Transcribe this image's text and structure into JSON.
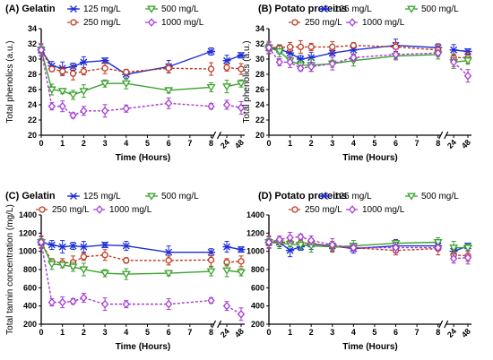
{
  "chart_data": [
    {
      "type": "line",
      "panel": "(A) Gelatin",
      "xlabel": "Time (Hours)",
      "ylabel": "Total phenolics (a.u.)",
      "ylim": [
        20,
        34
      ],
      "y_ticks": [
        "20",
        "22",
        "24",
        "26",
        "28",
        "30",
        "32",
        "34"
      ],
      "x_tick_labels": [
        "0",
        "1",
        "2",
        "3",
        "4",
        "5",
        "6",
        "7",
        "8",
        "24",
        "48"
      ],
      "series": [
        {
          "name": "125 mg/L",
          "color": "#1f2fd6",
          "dashed": false,
          "marker": "star",
          "x": [
            0,
            0.5,
            1,
            1.5,
            2,
            3,
            4,
            6,
            8,
            24,
            48
          ],
          "y": [
            31.2,
            29.1,
            28.8,
            29.0,
            29.6,
            29.8,
            28.0,
            29.0,
            31.0,
            29.8,
            30.5
          ]
        },
        {
          "name": "250 mg/L",
          "color": "#c0391e",
          "dashed": true,
          "marker": "circle",
          "x": [
            0,
            0.5,
            1,
            1.5,
            2,
            3,
            4,
            6,
            8,
            24,
            48
          ],
          "y": [
            31.2,
            28.7,
            28.4,
            28.1,
            28.4,
            28.8,
            28.3,
            28.8,
            28.7,
            28.9,
            28.7
          ]
        },
        {
          "name": "500 mg/L",
          "color": "#3aa22f",
          "dashed": false,
          "marker": "triangle-down",
          "x": [
            0,
            0.5,
            1,
            1.5,
            2,
            3,
            4,
            6,
            8,
            24,
            48
          ],
          "y": [
            31.2,
            26.0,
            25.8,
            25.3,
            25.8,
            26.8,
            26.8,
            25.9,
            26.3,
            26.4,
            26.8
          ]
        },
        {
          "name": "1000 mg/L",
          "color": "#a63cd6",
          "dashed": true,
          "marker": "diamond",
          "x": [
            0,
            0.5,
            1,
            1.5,
            2,
            3,
            4,
            6,
            8,
            24,
            48
          ],
          "y": [
            31.2,
            23.8,
            23.8,
            22.6,
            23.2,
            23.2,
            23.5,
            24.2,
            23.8,
            24.0,
            23.6
          ]
        }
      ]
    },
    {
      "type": "line",
      "panel": "(B) Potato proteins",
      "xlabel": "Time (Hours)",
      "ylabel": "Total phenolics (a.u.)",
      "ylim": [
        20,
        34
      ],
      "y_ticks": [
        "20",
        "22",
        "24",
        "26",
        "28",
        "30",
        "32",
        "34"
      ],
      "x_tick_labels": [
        "0",
        "1",
        "2",
        "3",
        "4",
        "5",
        "6",
        "7",
        "8",
        "24",
        "48"
      ],
      "series": [
        {
          "name": "125 mg/L",
          "color": "#1f2fd6",
          "dashed": false,
          "marker": "star",
          "x": [
            0,
            0.5,
            1,
            1.5,
            2,
            3,
            4,
            6,
            8,
            24,
            48
          ],
          "y": [
            31.5,
            31.3,
            30.8,
            30.0,
            30.2,
            30.8,
            31.2,
            31.8,
            31.5,
            31.2,
            31.0
          ]
        },
        {
          "name": "250 mg/L",
          "color": "#c0391e",
          "dashed": true,
          "marker": "circle",
          "x": [
            0,
            0.5,
            1,
            1.5,
            2,
            3,
            4,
            6,
            8,
            24,
            48
          ],
          "y": [
            31.5,
            31.5,
            31.6,
            31.6,
            31.6,
            31.6,
            31.8,
            31.6,
            31.2,
            30.2,
            30.2
          ]
        },
        {
          "name": "500 mg/L",
          "color": "#3aa22f",
          "dashed": false,
          "marker": "triangle-down",
          "x": [
            0,
            0.5,
            1,
            1.5,
            2,
            3,
            4,
            6,
            8,
            24,
            48
          ],
          "y": [
            31.5,
            31.0,
            29.8,
            29.2,
            29.2,
            29.4,
            29.8,
            30.4,
            30.6,
            29.6,
            29.8
          ]
        },
        {
          "name": "1000 mg/L",
          "color": "#a63cd6",
          "dashed": true,
          "marker": "diamond",
          "x": [
            0,
            0.5,
            1,
            1.5,
            2,
            3,
            4,
            6,
            8,
            24,
            48
          ],
          "y": [
            31.5,
            29.6,
            29.6,
            28.8,
            29.0,
            29.4,
            30.2,
            30.6,
            30.8,
            29.6,
            27.8
          ]
        }
      ]
    },
    {
      "type": "line",
      "panel": "(C) Gelatin",
      "xlabel": "Time (Hours)",
      "ylabel": "Total tannin concentration (mg/L)",
      "ylim": [
        200,
        1400
      ],
      "y_ticks": [
        "200",
        "400",
        "600",
        "800",
        "1000",
        "1200",
        "1400"
      ],
      "x_tick_labels": [
        "0",
        "1",
        "2",
        "3",
        "4",
        "5",
        "6",
        "7",
        "8",
        "24",
        "48"
      ],
      "series": [
        {
          "name": "125 mg/L",
          "color": "#1f2fd6",
          "dashed": false,
          "marker": "star",
          "x": [
            0,
            0.5,
            1,
            1.5,
            2,
            3,
            4,
            6,
            8,
            24,
            48
          ],
          "y": [
            1100,
            1070,
            1050,
            1060,
            1050,
            1070,
            1060,
            990,
            990,
            1050,
            1020
          ]
        },
        {
          "name": "250 mg/L",
          "color": "#c0391e",
          "dashed": true,
          "marker": "circle",
          "x": [
            0,
            0.5,
            1,
            1.5,
            2,
            3,
            4,
            6,
            8,
            24,
            48
          ],
          "y": [
            1100,
            890,
            870,
            880,
            940,
            960,
            900,
            900,
            905,
            880,
            890
          ]
        },
        {
          "name": "500 mg/L",
          "color": "#3aa22f",
          "dashed": false,
          "marker": "triangle-down",
          "x": [
            0,
            0.5,
            1,
            1.5,
            2,
            3,
            4,
            6,
            8,
            24,
            48
          ],
          "y": [
            1100,
            860,
            850,
            830,
            800,
            760,
            750,
            760,
            780,
            790,
            770
          ]
        },
        {
          "name": "1000 mg/L",
          "color": "#a63cd6",
          "dashed": true,
          "marker": "diamond",
          "x": [
            0,
            0.5,
            1,
            1.5,
            2,
            3,
            4,
            6,
            8,
            24,
            48
          ],
          "y": [
            1100,
            440,
            440,
            450,
            490,
            420,
            420,
            420,
            460,
            400,
            310
          ]
        }
      ]
    },
    {
      "type": "line",
      "panel": "(D) Potato proteins",
      "xlabel": "Time (Hours)",
      "ylabel": "",
      "ylim": [
        200,
        1400
      ],
      "y_ticks": [
        "200",
        "400",
        "600",
        "800",
        "1000",
        "1200",
        "1400"
      ],
      "x_tick_labels": [
        "0",
        "1",
        "2",
        "3",
        "4",
        "5",
        "6",
        "7",
        "8",
        "24",
        "48"
      ],
      "series": [
        {
          "name": "125 mg/L",
          "color": "#1f2fd6",
          "dashed": false,
          "marker": "star",
          "x": [
            0,
            0.5,
            1,
            1.5,
            2,
            3,
            4,
            6,
            8,
            24,
            48
          ],
          "y": [
            1100,
            1100,
            1010,
            1050,
            1080,
            1060,
            1030,
            1060,
            1060,
            1000,
            1060
          ]
        },
        {
          "name": "250 mg/L",
          "color": "#c0391e",
          "dashed": true,
          "marker": "circle",
          "x": [
            0,
            0.5,
            1,
            1.5,
            2,
            3,
            4,
            6,
            8,
            24,
            48
          ],
          "y": [
            1100,
            1100,
            1100,
            1090,
            1090,
            1050,
            1040,
            1010,
            1030,
            960,
            950
          ]
        },
        {
          "name": "500 mg/L",
          "color": "#3aa22f",
          "dashed": false,
          "marker": "triangle-down",
          "x": [
            0,
            0.5,
            1,
            1.5,
            2,
            3,
            4,
            6,
            8,
            24,
            48
          ],
          "y": [
            1100,
            1090,
            1080,
            1070,
            1060,
            1050,
            1060,
            1090,
            1100,
            1040,
            1040
          ]
        },
        {
          "name": "1000 mg/L",
          "color": "#a63cd6",
          "dashed": true,
          "marker": "diamond",
          "x": [
            0,
            0.5,
            1,
            1.5,
            2,
            3,
            4,
            6,
            8,
            24,
            48
          ],
          "y": [
            1100,
            1130,
            1150,
            1160,
            1120,
            1070,
            1040,
            1040,
            1040,
            920,
            930
          ]
        }
      ]
    }
  ]
}
